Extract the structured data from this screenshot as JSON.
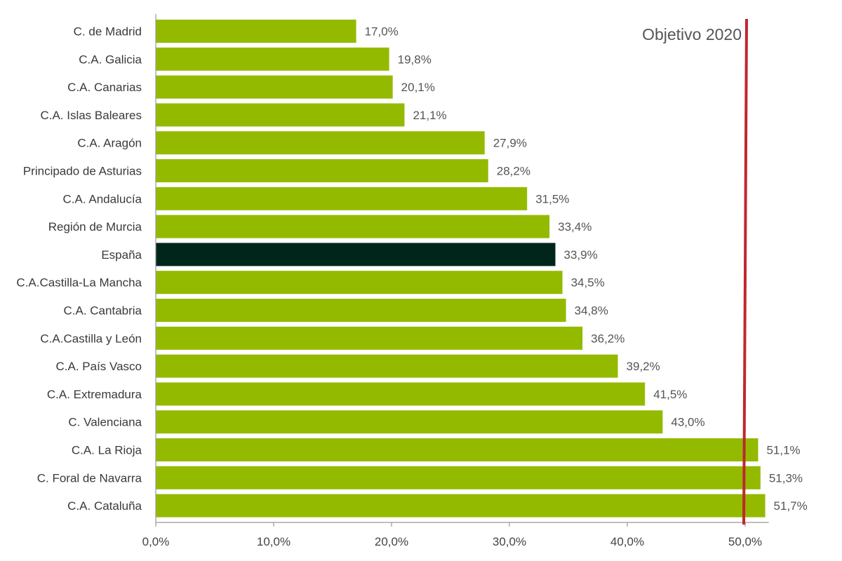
{
  "chart_data": {
    "type": "bar",
    "orientation": "horizontal",
    "categories": [
      "C. de Madrid",
      "C.A. Galicia",
      "C.A. Canarias",
      "C.A. Islas Baleares",
      "C.A. Aragón",
      "Principado de Asturias",
      "C.A. Andalucía",
      "Región de Murcia",
      "España",
      "C.A.Castilla-La Mancha",
      "C.A. Cantabria",
      "C.A.Castilla y León",
      "C.A. País Vasco",
      "C.A. Extremadura",
      "C. Valenciana",
      "C.A. La Rioja",
      "C. Foral de Navarra",
      "C.A. Cataluña"
    ],
    "values": [
      17.0,
      19.8,
      20.1,
      21.1,
      27.9,
      28.2,
      31.5,
      33.4,
      33.9,
      34.5,
      34.8,
      36.2,
      39.2,
      41.5,
      43.0,
      51.1,
      51.3,
      51.7
    ],
    "value_labels": [
      "17,0%",
      "19,8%",
      "20,1%",
      "21,1%",
      "27,9%",
      "28,2%",
      "31,5%",
      "33,4%",
      "33,9%",
      "34,5%",
      "34,8%",
      "36,2%",
      "39,2%",
      "41,5%",
      "43,0%",
      "51,1%",
      "51,3%",
      "51,7%"
    ],
    "highlight_category": "España",
    "xlim": [
      0,
      52
    ],
    "x_ticks": [
      0,
      10,
      20,
      30,
      40,
      50
    ],
    "x_tick_labels": [
      "0,0%",
      "10,0%",
      "20,0%",
      "30,0%",
      "40,0%",
      "50,0%"
    ],
    "target": {
      "value": 50,
      "label": "Objetivo 2020"
    },
    "title": "",
    "xlabel": "",
    "ylabel": "",
    "grid": false,
    "colors": {
      "bar": "#94ba00",
      "highlight": "#00261b",
      "target_line": "#c0272d",
      "axis": "#999999"
    }
  }
}
